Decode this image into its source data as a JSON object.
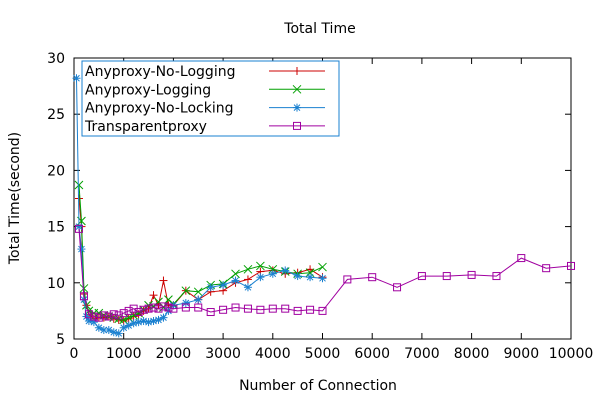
{
  "chart_data": {
    "type": "line",
    "title": "Total Time",
    "xlabel": "Number of Connection",
    "ylabel": "Total Time(second)",
    "xlim": [
      0,
      10000
    ],
    "ylim": [
      5,
      30
    ],
    "xticks": [
      0,
      1000,
      2000,
      3000,
      4000,
      5000,
      6000,
      7000,
      8000,
      9000,
      10000
    ],
    "yticks": [
      5,
      10,
      15,
      20,
      25,
      30
    ],
    "grid": false,
    "legend_position": "top-left",
    "series": [
      {
        "name": "Anyproxy-No-Logging",
        "color": "#cc0000",
        "marker": "plus",
        "x": [
          100,
          150,
          200,
          250,
          300,
          400,
          500,
          600,
          700,
          800,
          900,
          1000,
          1100,
          1200,
          1300,
          1400,
          1500,
          1600,
          1700,
          1800,
          1900,
          2000,
          2250,
          2500,
          2750,
          3000,
          3250,
          3500,
          3750,
          4000,
          4250,
          4500,
          4750,
          5000
        ],
        "y": [
          17.5,
          15.0,
          9.0,
          8.0,
          7.2,
          6.8,
          6.9,
          6.9,
          7.0,
          6.8,
          6.7,
          6.6,
          6.8,
          7.0,
          7.2,
          7.5,
          7.7,
          8.9,
          8.0,
          10.2,
          8.0,
          8.0,
          9.3,
          8.5,
          9.2,
          9.3,
          10.0,
          10.3,
          11.0,
          11.1,
          10.8,
          10.9,
          11.2,
          10.5
        ]
      },
      {
        "name": "Anyproxy-Logging",
        "color": "#00a000",
        "marker": "cross",
        "x": [
          100,
          150,
          200,
          250,
          300,
          400,
          500,
          600,
          700,
          800,
          900,
          1000,
          1100,
          1200,
          1300,
          1400,
          1500,
          1600,
          1700,
          1800,
          1900,
          2000,
          2250,
          2500,
          2750,
          3000,
          3250,
          3500,
          3750,
          4000,
          4250,
          4500,
          4750,
          5000
        ],
        "y": [
          18.7,
          15.5,
          9.5,
          8.0,
          7.5,
          7.3,
          7.3,
          7.1,
          7.0,
          6.9,
          6.8,
          6.7,
          6.9,
          7.1,
          7.3,
          7.6,
          8.0,
          7.9,
          8.3,
          7.8,
          8.5,
          8.1,
          9.3,
          9.2,
          9.8,
          9.9,
          10.8,
          11.2,
          11.5,
          11.2,
          11.0,
          10.8,
          10.9,
          11.4
        ]
      },
      {
        "name": "Anyproxy-No-Locking",
        "color": "#1a80d0",
        "marker": "asterisk",
        "x": [
          50,
          100,
          150,
          200,
          250,
          300,
          400,
          500,
          600,
          700,
          800,
          900,
          1000,
          1100,
          1200,
          1300,
          1400,
          1500,
          1600,
          1700,
          1800,
          1900,
          2000,
          2250,
          2500,
          2750,
          3000,
          3250,
          3500,
          3750,
          4000,
          4250,
          4500,
          4750,
          5000
        ],
        "y": [
          28.2,
          15.0,
          13.0,
          8.5,
          7.0,
          6.6,
          6.5,
          6.0,
          5.8,
          5.8,
          5.6,
          5.5,
          6.0,
          6.2,
          6.4,
          6.5,
          6.6,
          6.5,
          6.6,
          6.7,
          6.9,
          7.5,
          8.0,
          8.2,
          8.5,
          9.6,
          9.8,
          10.2,
          9.6,
          10.5,
          10.8,
          11.1,
          10.6,
          10.5,
          10.4
        ]
      },
      {
        "name": "Transparentproxy",
        "color": "#a000a0",
        "marker": "square",
        "x": [
          100,
          200,
          300,
          400,
          500,
          600,
          700,
          800,
          900,
          1000,
          1100,
          1200,
          1300,
          1400,
          1500,
          1600,
          1700,
          1800,
          1900,
          2000,
          2250,
          2500,
          2750,
          3000,
          3250,
          3500,
          3750,
          4000,
          4250,
          4500,
          4750,
          5000,
          5500,
          6000,
          6500,
          7000,
          7500,
          8000,
          8500,
          9000,
          9500,
          10000
        ],
        "y": [
          14.8,
          8.8,
          7.2,
          7.0,
          6.9,
          7.1,
          7.0,
          7.2,
          7.1,
          7.3,
          7.5,
          7.7,
          7.4,
          7.6,
          7.7,
          7.8,
          7.7,
          7.9,
          7.8,
          7.7,
          7.8,
          7.8,
          7.4,
          7.6,
          7.8,
          7.7,
          7.6,
          7.7,
          7.7,
          7.5,
          7.6,
          7.5,
          10.3,
          10.5,
          9.6,
          10.6,
          10.6,
          10.7,
          10.6,
          12.2,
          11.3,
          11.5
        ]
      }
    ]
  }
}
